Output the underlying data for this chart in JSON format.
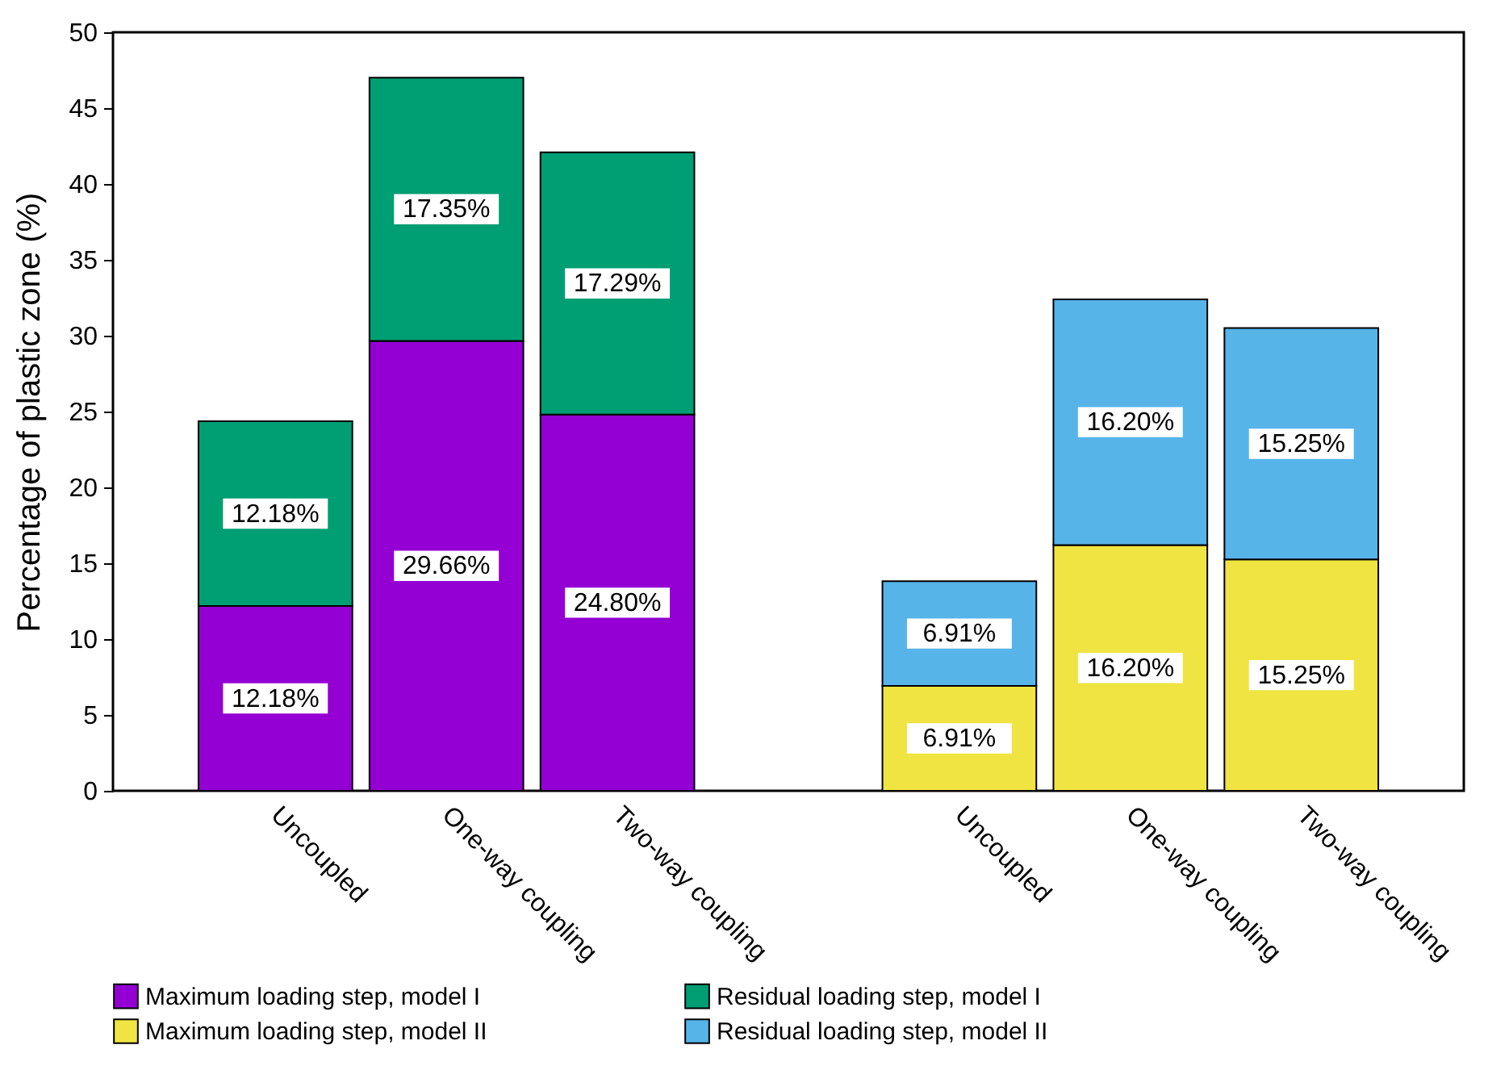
{
  "chart_data": {
    "type": "bar",
    "stacked": true,
    "ylabel": "Percentage of plastic zone (%)",
    "categories": [
      "Uncoupled",
      "One-way coupling",
      "Two-way coupling",
      null,
      "Uncoupled",
      "One-way coupling",
      "Two-way coupling"
    ],
    "series": [
      {
        "name": "Maximum loading step, model I",
        "color": "#9400d3",
        "values": [
          12.18,
          29.66,
          24.8,
          null,
          null,
          null,
          null
        ],
        "value_labels": [
          "12.18%",
          "29.66%",
          "24.80%",
          null,
          null,
          null,
          null
        ]
      },
      {
        "name": "Residual loading step, model I",
        "color": "#009e73",
        "values": [
          12.18,
          17.35,
          17.29,
          null,
          null,
          null,
          null
        ],
        "value_labels": [
          "12.18%",
          "17.35%",
          "17.29%",
          null,
          null,
          null,
          null
        ]
      },
      {
        "name": "Maximum loading step, model II",
        "color": "#f0e442",
        "values": [
          null,
          null,
          null,
          null,
          6.91,
          16.2,
          15.25
        ],
        "value_labels": [
          null,
          null,
          null,
          null,
          "6.91%",
          "16.20%",
          "15.25%"
        ]
      },
      {
        "name": "Residual loading step, model II",
        "color": "#56b4e9",
        "values": [
          null,
          null,
          null,
          null,
          6.91,
          16.2,
          15.25
        ],
        "value_labels": [
          null,
          null,
          null,
          null,
          "6.91%",
          "16.20%",
          "15.25%"
        ]
      }
    ],
    "ylim": [
      0,
      50
    ],
    "yticks": [
      0,
      5,
      10,
      15,
      20,
      25,
      30,
      35,
      40,
      45,
      50
    ],
    "grid": false,
    "legend": "bottom"
  }
}
